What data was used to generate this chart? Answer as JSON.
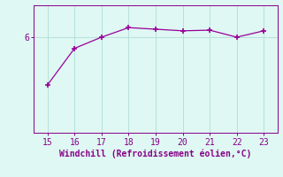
{
  "x": [
    15,
    16,
    17,
    18,
    19,
    20,
    21,
    22,
    23
  ],
  "y": [
    4.5,
    5.65,
    6.0,
    6.3,
    6.25,
    6.2,
    6.22,
    6.0,
    6.2
  ],
  "line_color": "#990099",
  "marker": "+",
  "marker_size": 4,
  "marker_linewidth": 1.2,
  "line_width": 0.9,
  "background_color": "#dff8f3",
  "grid_color": "#b0ddd8",
  "tick_color": "#880088",
  "label_color": "#880088",
  "xlabel": "Windchill (Refroidissement éolien,°C)",
  "xlim": [
    14.5,
    23.5
  ],
  "ylim": [
    3.0,
    7.0
  ],
  "yticks": [
    6
  ],
  "xticks": [
    15,
    16,
    17,
    18,
    19,
    20,
    21,
    22,
    23
  ],
  "axis_fontsize": 7,
  "tick_fontsize": 7
}
